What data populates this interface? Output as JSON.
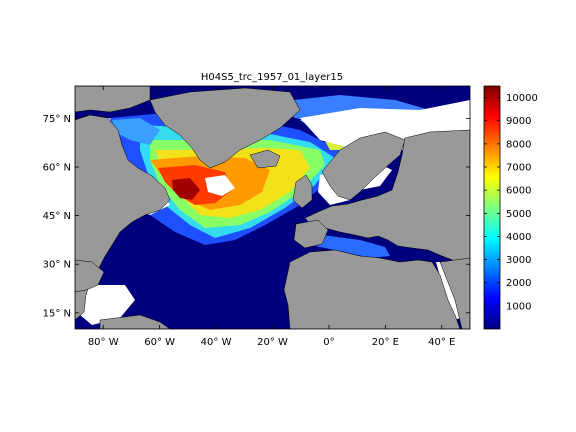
{
  "figure": {
    "title": "H04S5_trc_1957_01_layer15"
  },
  "map": {
    "lon_range": [
      -90,
      50
    ],
    "lat_range": [
      10,
      85
    ],
    "x_ticks": [
      {
        "value": -80,
        "label": "80° W"
      },
      {
        "value": -60,
        "label": "60° W"
      },
      {
        "value": -40,
        "label": "40° W"
      },
      {
        "value": -20,
        "label": "20° W"
      },
      {
        "value": 0,
        "label": "0°"
      },
      {
        "value": 20,
        "label": "20° E"
      },
      {
        "value": 40,
        "label": "40° E"
      }
    ],
    "y_ticks": [
      {
        "value": 15,
        "label": "15° N"
      },
      {
        "value": 30,
        "label": "30° N"
      },
      {
        "value": 45,
        "label": "45° N"
      },
      {
        "value": 60,
        "label": "60° N"
      },
      {
        "value": 75,
        "label": "75° N"
      }
    ],
    "colors": {
      "land": "#999999",
      "nodata": "#ffffff",
      "ocean_low": "#00007f"
    }
  },
  "colorbar": {
    "min": 0,
    "max": 10500,
    "ticks": [
      1000,
      2000,
      3000,
      4000,
      5000,
      6000,
      7000,
      8000,
      9000,
      10000
    ],
    "tick_labels": [
      "1000",
      "2000",
      "3000",
      "4000",
      "5000",
      "6000",
      "7000",
      "8000",
      "9000",
      "10000"
    ],
    "colormap": "jet"
  }
}
